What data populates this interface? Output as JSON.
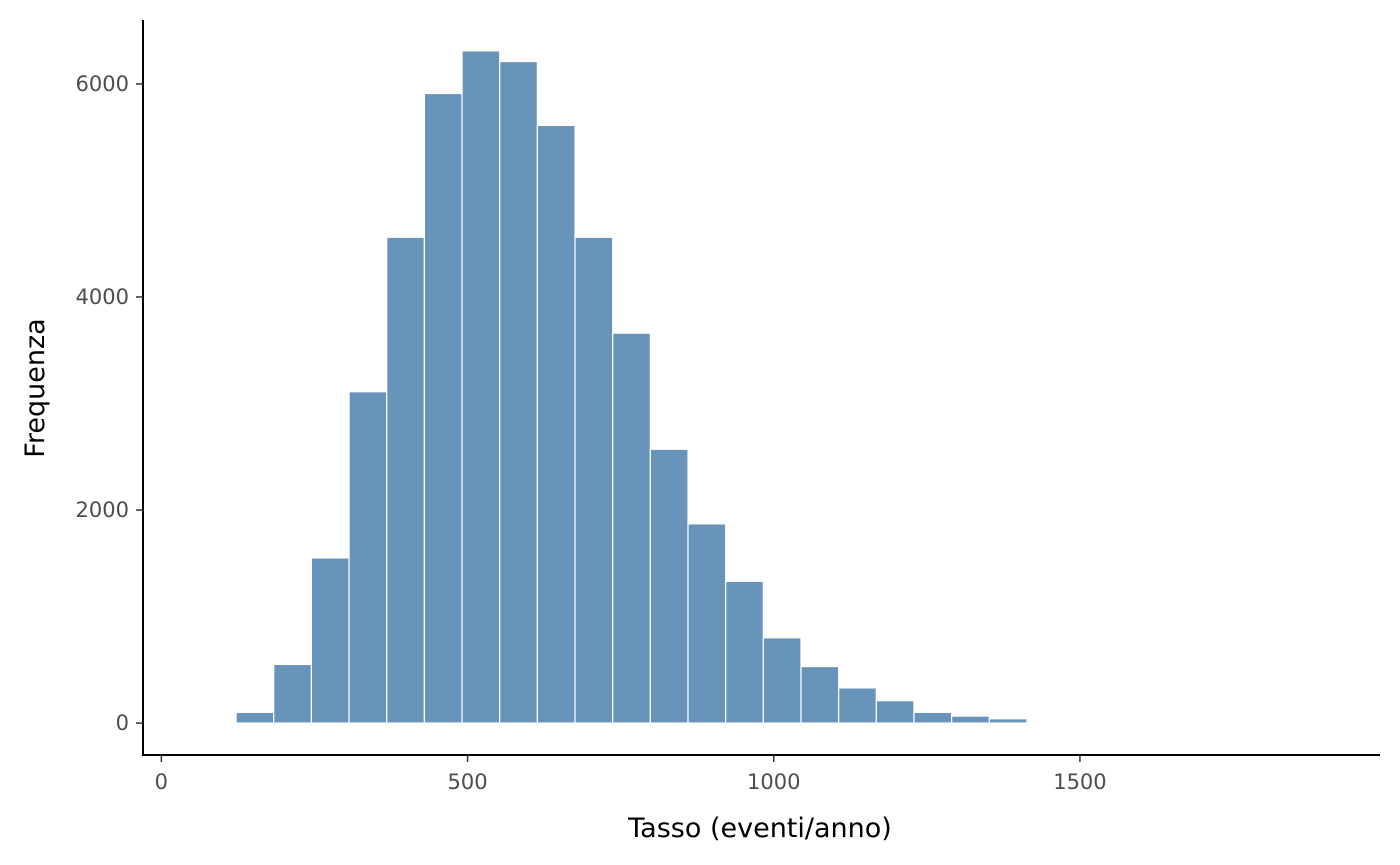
{
  "chart_data": {
    "type": "bar",
    "subtype": "histogram",
    "title": "",
    "xlabel": "Tasso (eventi/anno)",
    "ylabel": "Frequenza",
    "xlim": [
      -30,
      1990
    ],
    "ylim": [
      -300,
      6600
    ],
    "x_ticks": [
      0,
      500,
      1000,
      1500
    ],
    "x_tick_labels": [
      "0",
      "500",
      "1000",
      "1500"
    ],
    "y_ticks": [
      0,
      2000,
      4000,
      6000
    ],
    "y_tick_labels": [
      "0",
      "2000",
      "4000",
      "6000"
    ],
    "bin_width": 61.5,
    "bins": [
      {
        "start": 122,
        "end": 183.5,
        "count": 100
      },
      {
        "start": 183.5,
        "end": 245,
        "count": 550
      },
      {
        "start": 245,
        "end": 306.5,
        "count": 1550
      },
      {
        "start": 306.5,
        "end": 368,
        "count": 3110
      },
      {
        "start": 368,
        "end": 429.5,
        "count": 4560
      },
      {
        "start": 429.5,
        "end": 491,
        "count": 5910
      },
      {
        "start": 491,
        "end": 552.5,
        "count": 6310
      },
      {
        "start": 552.5,
        "end": 614,
        "count": 6210
      },
      {
        "start": 614,
        "end": 675.5,
        "count": 5610
      },
      {
        "start": 675.5,
        "end": 737,
        "count": 4560
      },
      {
        "start": 737,
        "end": 798.5,
        "count": 3660
      },
      {
        "start": 798.5,
        "end": 860,
        "count": 2570
      },
      {
        "start": 860,
        "end": 921.5,
        "count": 1870
      },
      {
        "start": 921.5,
        "end": 983,
        "count": 1330
      },
      {
        "start": 983,
        "end": 1044.5,
        "count": 800
      },
      {
        "start": 1044.5,
        "end": 1106,
        "count": 530
      },
      {
        "start": 1106,
        "end": 1167.5,
        "count": 330
      },
      {
        "start": 1167.5,
        "end": 1229,
        "count": 210
      },
      {
        "start": 1229,
        "end": 1290.5,
        "count": 100
      },
      {
        "start": 1290.5,
        "end": 1352,
        "count": 65
      },
      {
        "start": 1352,
        "end": 1413.5,
        "count": 40
      },
      {
        "start": 1413.5,
        "end": 1475,
        "count": 10
      }
    ],
    "bar_color": "#6893bb",
    "bar_edge_color": "#ffffff",
    "grid": false,
    "legend": "none"
  }
}
